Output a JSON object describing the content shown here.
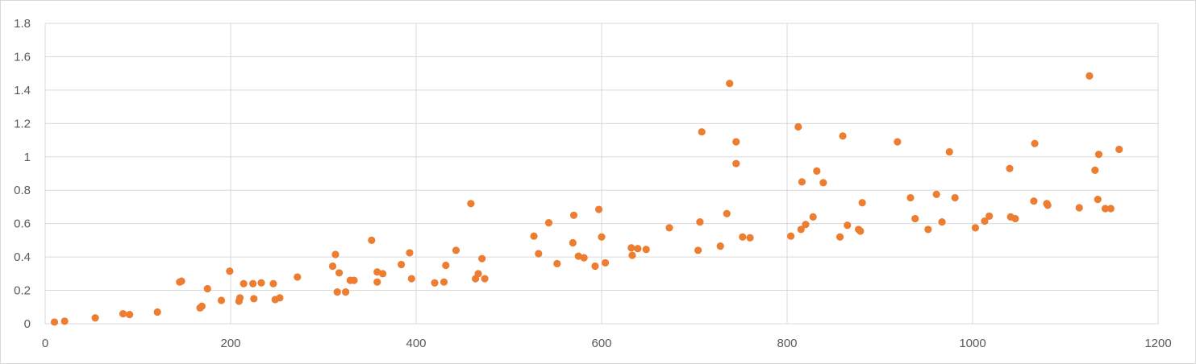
{
  "chart_data": {
    "type": "scatter",
    "title": "",
    "xlabel": "",
    "ylabel": "",
    "xlim": [
      0,
      1200
    ],
    "ylim": [
      0,
      1.8
    ],
    "x_ticks": [
      "0",
      "200",
      "400",
      "600",
      "800",
      "1000",
      "1200"
    ],
    "y_ticks": [
      "0",
      "0.2",
      "0.4",
      "0.6",
      "0.8",
      "1",
      "1.2",
      "1.4",
      "1.6",
      "1.8"
    ],
    "grid": true,
    "legend": "none",
    "colors": {
      "marker": "#ed7d31",
      "grid": "#d9d9d9",
      "tick_text": "#595959"
    },
    "series": [
      {
        "points": [
          [
            10,
            0.01
          ],
          [
            21,
            0.015
          ],
          [
            54,
            0.035
          ],
          [
            84,
            0.06
          ],
          [
            91,
            0.055
          ],
          [
            121,
            0.07
          ],
          [
            145,
            0.25
          ],
          [
            147,
            0.255
          ],
          [
            167,
            0.095
          ],
          [
            169,
            0.105
          ],
          [
            175,
            0.21
          ],
          [
            190,
            0.14
          ],
          [
            199,
            0.315
          ],
          [
            209,
            0.135
          ],
          [
            210,
            0.155
          ],
          [
            214,
            0.24
          ],
          [
            224,
            0.24
          ],
          [
            225,
            0.15
          ],
          [
            233,
            0.245
          ],
          [
            246,
            0.24
          ],
          [
            248,
            0.145
          ],
          [
            253,
            0.155
          ],
          [
            272,
            0.28
          ],
          [
            310,
            0.345
          ],
          [
            313,
            0.415
          ],
          [
            315,
            0.19
          ],
          [
            317,
            0.305
          ],
          [
            324,
            0.19
          ],
          [
            329,
            0.26
          ],
          [
            333,
            0.26
          ],
          [
            352,
            0.5
          ],
          [
            358,
            0.25
          ],
          [
            358,
            0.31
          ],
          [
            364,
            0.3
          ],
          [
            384,
            0.355
          ],
          [
            393,
            0.425
          ],
          [
            395,
            0.27
          ],
          [
            420,
            0.245
          ],
          [
            430,
            0.25
          ],
          [
            432,
            0.35
          ],
          [
            443,
            0.44
          ],
          [
            459,
            0.72
          ],
          [
            464,
            0.27
          ],
          [
            467,
            0.3
          ],
          [
            471,
            0.39
          ],
          [
            474,
            0.27
          ],
          [
            527,
            0.525
          ],
          [
            532,
            0.42
          ],
          [
            543,
            0.605
          ],
          [
            552,
            0.36
          ],
          [
            569,
            0.485
          ],
          [
            570,
            0.65
          ],
          [
            575,
            0.405
          ],
          [
            581,
            0.395
          ],
          [
            593,
            0.345
          ],
          [
            597,
            0.685
          ],
          [
            600,
            0.52
          ],
          [
            604,
            0.365
          ],
          [
            632,
            0.455
          ],
          [
            633,
            0.41
          ],
          [
            639,
            0.45
          ],
          [
            648,
            0.445
          ],
          [
            673,
            0.575
          ],
          [
            704,
            0.44
          ],
          [
            706,
            0.61
          ],
          [
            708,
            1.15
          ],
          [
            728,
            0.465
          ],
          [
            735,
            0.66
          ],
          [
            738,
            1.44
          ],
          [
            745,
            1.09
          ],
          [
            745,
            0.96
          ],
          [
            752,
            0.52
          ],
          [
            760,
            0.515
          ],
          [
            804,
            0.525
          ],
          [
            812,
            1.18
          ],
          [
            815,
            0.565
          ],
          [
            816,
            0.85
          ],
          [
            820,
            0.595
          ],
          [
            828,
            0.64
          ],
          [
            832,
            0.915
          ],
          [
            839,
            0.845
          ],
          [
            857,
            0.52
          ],
          [
            860,
            1.125
          ],
          [
            865,
            0.59
          ],
          [
            877,
            0.565
          ],
          [
            879,
            0.555
          ],
          [
            881,
            0.725
          ],
          [
            919,
            1.09
          ],
          [
            933,
            0.755
          ],
          [
            938,
            0.63
          ],
          [
            952,
            0.565
          ],
          [
            961,
            0.775
          ],
          [
            967,
            0.61
          ],
          [
            975,
            1.03
          ],
          [
            981,
            0.755
          ],
          [
            1003,
            0.575
          ],
          [
            1013,
            0.615
          ],
          [
            1018,
            0.645
          ],
          [
            1040,
            0.93
          ],
          [
            1041,
            0.64
          ],
          [
            1046,
            0.63
          ],
          [
            1066,
            0.735
          ],
          [
            1067,
            1.08
          ],
          [
            1080,
            0.72
          ],
          [
            1081,
            0.71
          ],
          [
            1115,
            0.695
          ],
          [
            1126,
            1.485
          ],
          [
            1132,
            0.92
          ],
          [
            1135,
            0.745
          ],
          [
            1136,
            1.015
          ],
          [
            1143,
            0.69
          ],
          [
            1149,
            0.69
          ],
          [
            1158,
            1.045
          ]
        ]
      }
    ]
  }
}
